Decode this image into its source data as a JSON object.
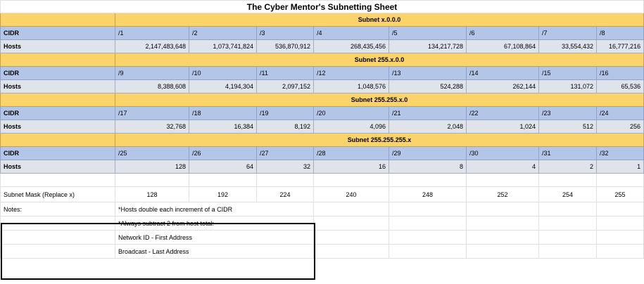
{
  "title": "The Cyber Mentor's Subnetting Sheet",
  "labels": {
    "cidr": "CIDR",
    "hosts": "Hosts"
  },
  "blocks": [
    {
      "subnet": "Subnet x.0.0.0",
      "cidr": [
        "/1",
        "/2",
        "/3",
        "/4",
        "/5",
        "/6",
        "/7",
        "/8"
      ],
      "hosts": [
        "2,147,483,648",
        "1,073,741,824",
        "536,870,912",
        "268,435,456",
        "134,217,728",
        "67,108,864",
        "33,554,432",
        "16,777,216"
      ]
    },
    {
      "subnet": "Subnet 255.x.0.0",
      "cidr": [
        "/9",
        "/10",
        "/11",
        "/12",
        "/13",
        "/14",
        "/15",
        "/16"
      ],
      "hosts": [
        "8,388,608",
        "4,194,304",
        "2,097,152",
        "1,048,576",
        "524,288",
        "262,144",
        "131,072",
        "65,536"
      ]
    },
    {
      "subnet": "Subnet 255.255.x.0",
      "cidr": [
        "/17",
        "/18",
        "/19",
        "/20",
        "/21",
        "/22",
        "/23",
        "/24"
      ],
      "hosts": [
        "32,768",
        "16,384",
        "8,192",
        "4,096",
        "2,048",
        "1,024",
        "512",
        "256"
      ]
    },
    {
      "subnet": "Subnet 255.255.255.x",
      "cidr": [
        "/25",
        "/26",
        "/27",
        "/28",
        "/29",
        "/30",
        "/31",
        "/32"
      ],
      "hosts": [
        "128",
        "64",
        "32",
        "16",
        "8",
        "4",
        "2",
        "1"
      ]
    }
  ],
  "subnet_mask": {
    "label": "Subnet Mask (Replace x)",
    "values": [
      "128",
      "192",
      "224",
      "240",
      "248",
      "252",
      "254",
      "255"
    ]
  },
  "notes": {
    "label": "Notes:",
    "lines": [
      "*Hosts double each increment of a CIDR",
      "*Always subtract 2 from host total:",
      "Network ID - First Address",
      "Broadcast - Last Address"
    ]
  },
  "colors": {
    "subnet_header": "#fbd36b",
    "cidr_row": "#b4c6e7",
    "hosts_row": "#dfe3ea"
  }
}
